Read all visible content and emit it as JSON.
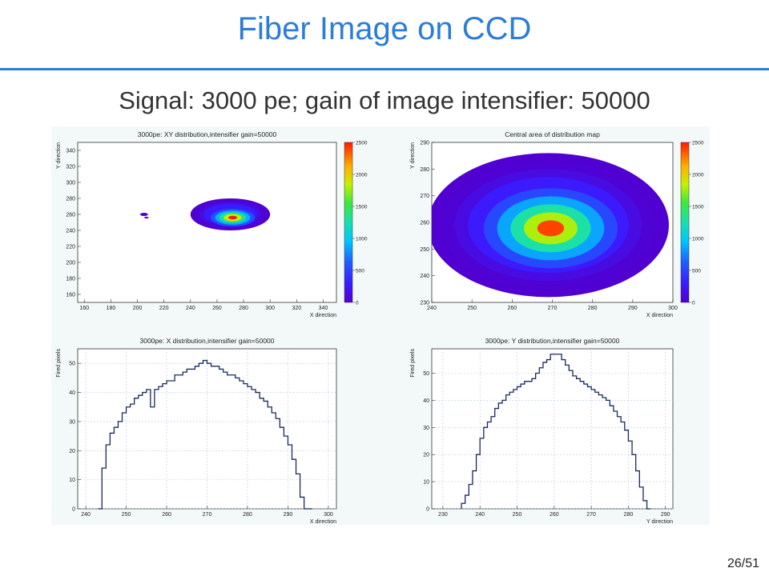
{
  "slide": {
    "title": "Fiber Image on CCD",
    "subtitle": "Signal: 3000 pe; gain of image intensifier: 50000",
    "page_number": "26/51",
    "accent_color": "#2b7dd6"
  },
  "chart_data": [
    {
      "type": "heatmap",
      "title": "3000pe: XY distribution,intensifier gain=50000",
      "xlabel": "X direction",
      "ylabel": "Y direction",
      "xlim": [
        155,
        350
      ],
      "ylim": [
        150,
        350
      ],
      "xticks": [
        160,
        180,
        200,
        220,
        240,
        260,
        280,
        300,
        320,
        340
      ],
      "yticks": [
        160,
        180,
        200,
        220,
        240,
        260,
        280,
        300,
        320,
        340
      ],
      "zlim": [
        0,
        2500
      ],
      "zticks": [
        0,
        500,
        1000,
        1500,
        2000,
        2500
      ],
      "features": [
        {
          "kind": "spot",
          "cx": 270,
          "cy": 260,
          "rx": 30,
          "ry": 20,
          "peak": 2500
        },
        {
          "kind": "spot",
          "cx": 205,
          "cy": 260,
          "rx": 3,
          "ry": 2,
          "peak": 120
        }
      ]
    },
    {
      "type": "heatmap",
      "title": "Central area of distribution map",
      "xlabel": "X direction",
      "ylabel": "Y direction",
      "xlim": [
        240,
        300
      ],
      "ylim": [
        230,
        290
      ],
      "xticks": [
        240,
        250,
        260,
        270,
        280,
        290,
        300
      ],
      "yticks": [
        230,
        240,
        250,
        260,
        270,
        280,
        290
      ],
      "zlim": [
        0,
        2500
      ],
      "zticks": [
        0,
        500,
        1000,
        1500,
        2000,
        2500
      ],
      "features": [
        {
          "kind": "spot",
          "cx": 269,
          "cy": 259,
          "rx": 30,
          "ry": 27,
          "peak": 2400
        }
      ]
    },
    {
      "type": "line",
      "title": "3000pe: X distribution,intensifier gain=50000",
      "xlabel": "X direction",
      "ylabel": "Fired pixels",
      "xlim": [
        238,
        302
      ],
      "ylim": [
        0,
        55
      ],
      "xticks": [
        240,
        250,
        260,
        270,
        280,
        290,
        300
      ],
      "yticks": [
        0,
        10,
        20,
        30,
        40,
        50
      ],
      "x": [
        243,
        244,
        245,
        246,
        247,
        248,
        249,
        250,
        251,
        252,
        253,
        254,
        255,
        256,
        257,
        258,
        259,
        260,
        261,
        262,
        263,
        264,
        265,
        266,
        267,
        268,
        269,
        270,
        271,
        272,
        273,
        274,
        275,
        276,
        277,
        278,
        279,
        280,
        281,
        282,
        283,
        284,
        285,
        286,
        287,
        288,
        289,
        290,
        291,
        292,
        293,
        294,
        295
      ],
      "y": [
        0,
        14,
        22,
        26,
        28,
        30,
        33,
        35,
        36,
        38,
        39,
        40,
        41,
        35,
        41,
        42,
        43,
        44,
        44,
        46,
        46,
        47,
        48,
        48,
        49,
        50,
        51,
        50,
        49,
        49,
        48,
        47,
        46,
        46,
        45,
        44,
        43,
        42,
        41,
        40,
        38,
        37,
        35,
        33,
        31,
        28,
        25,
        22,
        17,
        12,
        4,
        0,
        0
      ]
    },
    {
      "type": "line",
      "title": "3000pe: Y distribution,intensifier gain=50000",
      "xlabel": "Y direction",
      "ylabel": "Fired pixels",
      "xlim": [
        227,
        292
      ],
      "ylim": [
        0,
        59
      ],
      "xticks": [
        230,
        240,
        250,
        260,
        270,
        280,
        290
      ],
      "yticks": [
        0,
        10,
        20,
        30,
        40,
        50
      ],
      "x": [
        235,
        236,
        237,
        238,
        239,
        240,
        241,
        242,
        243,
        244,
        245,
        246,
        247,
        248,
        249,
        250,
        251,
        252,
        253,
        254,
        255,
        256,
        257,
        258,
        259,
        260,
        261,
        262,
        263,
        264,
        265,
        266,
        267,
        268,
        269,
        270,
        271,
        272,
        273,
        274,
        275,
        276,
        277,
        278,
        279,
        280,
        281,
        282,
        283,
        284,
        285
      ],
      "y": [
        2,
        5,
        9,
        14,
        20,
        26,
        30,
        32,
        34,
        37,
        39,
        40,
        42,
        43,
        44,
        45,
        46,
        47,
        47,
        48,
        50,
        52,
        54,
        55,
        57,
        57,
        57,
        55,
        53,
        51,
        49,
        48,
        47,
        46,
        45,
        44,
        43,
        42,
        41,
        40,
        38,
        36,
        34,
        32,
        29,
        25,
        20,
        14,
        8,
        3,
        0
      ]
    }
  ]
}
